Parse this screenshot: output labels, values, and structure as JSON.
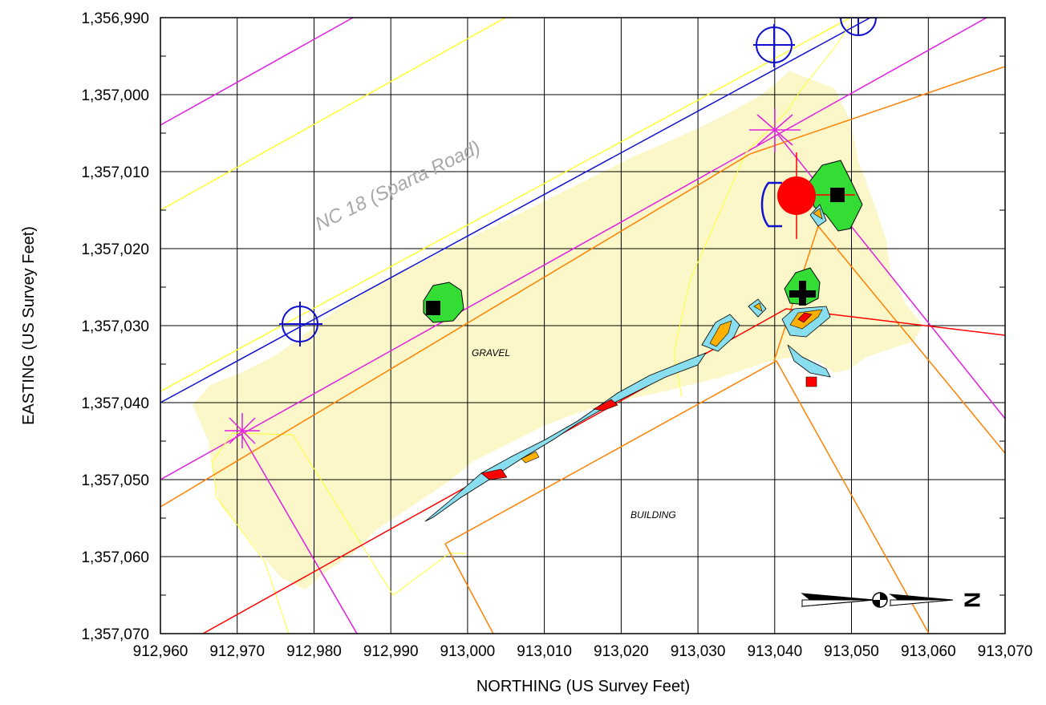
{
  "map": {
    "x_axis": {
      "title": "NORTHING (US Survey Feet)",
      "range": [
        912960,
        913070
      ],
      "ticks": [
        "912,960",
        "912,970",
        "912,980",
        "912,990",
        "913,000",
        "913,010",
        "913,020",
        "913,030",
        "913,040",
        "913,050",
        "913,060",
        "913,070"
      ]
    },
    "y_axis": {
      "title": "EASTING (US Survey Feet)",
      "range": [
        1356990,
        1357070
      ],
      "ticks": [
        "1,356,990",
        "1,357,000",
        "1,357,010",
        "1,357,020",
        "1,357,030",
        "1,357,040",
        "1,357,050",
        "1,357,060",
        "1,357,070"
      ]
    },
    "grid": true,
    "labels": {
      "road": "NC 18 (Sparta Road)",
      "gravel": "GRAVEL",
      "building": "BUILDING"
    },
    "north_arrow": {
      "label": "N",
      "direction": "right"
    },
    "colors": {
      "background_plume": "#fbf7c8",
      "road_edge": "#ffff33",
      "road_center": "#1010d0",
      "utility_magenta": "#e020e0",
      "orange_lines": "#ff8000",
      "property_line": "#ff0000",
      "contour_green": "#33dd33",
      "contour_cyan": "#88ddee",
      "contour_orange": "#ffb000",
      "contour_red": "#ff0000",
      "well_marker": "#000000",
      "red_point": "#ff0000"
    },
    "wells": [
      {
        "type": "square",
        "x": 912996,
        "y": 1357028
      },
      {
        "type": "square",
        "x": 913048,
        "y": 1357013
      },
      {
        "type": "plus",
        "x": 913043,
        "y": 1357026
      }
    ],
    "monuments": [
      {
        "type": "circle-cross",
        "x": 912979,
        "y": 1357030
      },
      {
        "type": "circle-cross",
        "x": 913040,
        "y": 1356994
      },
      {
        "type": "circle-cross",
        "x": 913051,
        "y": 1356990
      }
    ],
    "red_point": {
      "x": 913043,
      "y": 1357013
    }
  }
}
